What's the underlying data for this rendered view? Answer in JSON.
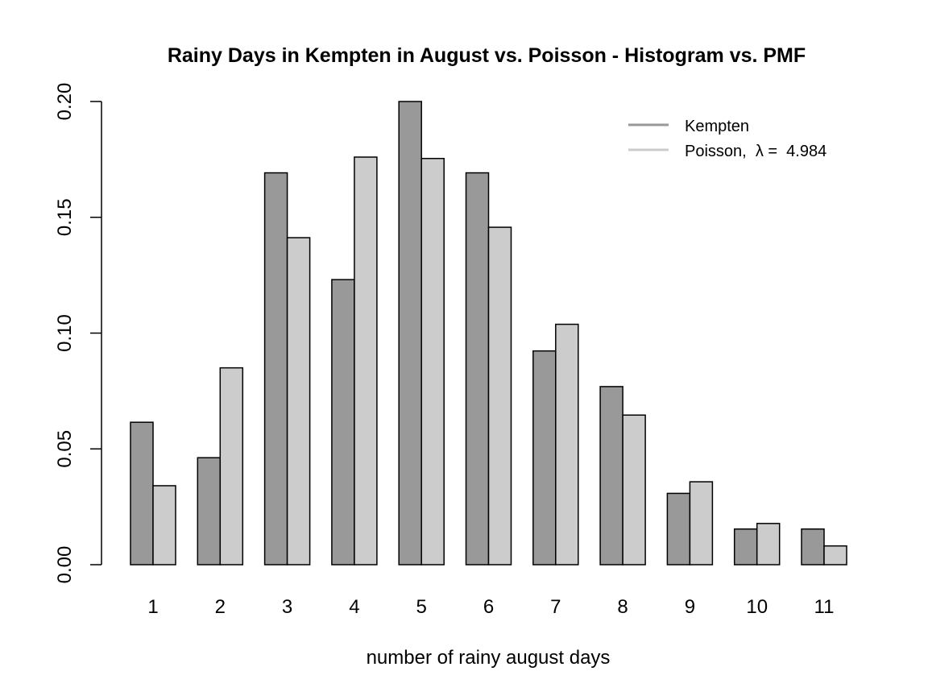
{
  "chart_data": {
    "type": "bar",
    "title": "Rainy Days in Kempten in August vs. Poisson - Histogram vs. PMF",
    "xlabel": "number of rainy august days",
    "ylabel": "",
    "categories": [
      "1",
      "2",
      "3",
      "4",
      "5",
      "6",
      "7",
      "8",
      "9",
      "10",
      "11"
    ],
    "series": [
      {
        "name": "Kempten",
        "color": "#999999",
        "values": [
          0.0615,
          0.0462,
          0.1692,
          0.1231,
          0.2,
          0.1692,
          0.0923,
          0.0769,
          0.0308,
          0.0154,
          0.0154
        ]
      },
      {
        "name": "Poisson",
        "color": "#cccccc",
        "values": [
          0.0341,
          0.085,
          0.1412,
          0.176,
          0.1754,
          0.1457,
          0.1038,
          0.0646,
          0.0358,
          0.0178,
          0.0081
        ]
      }
    ],
    "ylim": [
      0,
      0.2
    ],
    "yticks": [
      "0.00",
      "0.05",
      "0.10",
      "0.15",
      "0.20"
    ],
    "legend": {
      "position": "top-right",
      "entries": [
        "Kempten",
        "Poisson,  λ =  4.984"
      ]
    },
    "grid": false
  }
}
